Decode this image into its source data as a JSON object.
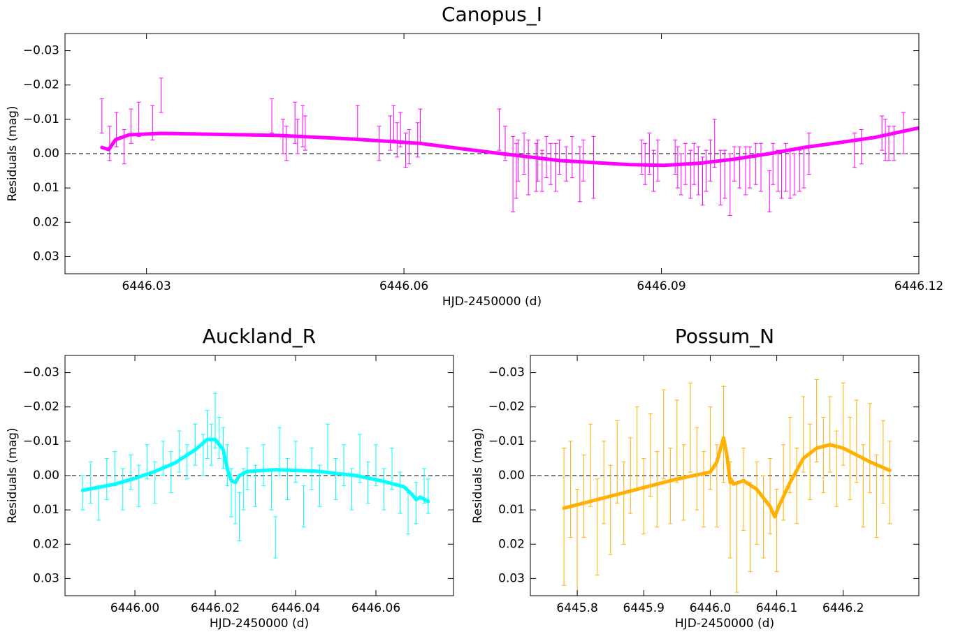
{
  "chart_data": [
    {
      "type": "errorbar",
      "title": "Canopus_I",
      "x_label": "HJD-2450000 (d)",
      "y_label": "Residuals (mag)",
      "xlim": [
        6446.0205,
        6446.12
      ],
      "ylim": [
        0.035,
        -0.035
      ],
      "xticks": [
        6446.03,
        6446.06,
        6446.09,
        6446.12
      ],
      "yticks": [
        {
          "value": -0.03,
          "label": "−0.03"
        },
        {
          "value": -0.02,
          "label": "−0.02"
        },
        {
          "value": -0.01,
          "label": "−0.01"
        },
        {
          "value": 0,
          "label": "0.00"
        },
        0.01,
        0.02,
        0.03
      ],
      "reference_line": 0,
      "series": [
        {
          "type": "errorbar",
          "color": "#ff00ff",
          "x": [
            6446.0248,
            6446.0257,
            6446.0265,
            6446.0274,
            6446.0282,
            6446.0291,
            6446.0307,
            6446.0317,
            6446.0446,
            6446.0459,
            6446.0463,
            6446.0473,
            6446.0476,
            6446.0482,
            6446.0485,
            6446.0546,
            6446.0571,
            6446.0584,
            6446.0588,
            6446.0592,
            6446.0596,
            6446.0602,
            6446.0606,
            6446.0616,
            6446.0619,
            6446.0711,
            6446.0718,
            6446.0727,
            6446.0731,
            6446.0733,
            6446.074,
            6446.0745,
            6446.0754,
            6446.0756,
            6446.0761,
            6446.0766,
            6446.0771,
            6446.0777,
            6446.0781,
            6446.0789,
            6446.0796,
            6446.0805,
            6446.0809,
            6446.0821,
            6446.0877,
            6446.0881,
            6446.0886,
            6446.0891,
            6446.0896,
            6446.0916,
            6446.0919,
            6446.0923,
            6446.0928,
            6446.0934,
            6446.0938,
            6446.0943,
            6446.0948,
            6446.0952,
            6446.0957,
            6446.0962,
            6446.0969,
            6446.0974,
            6446.098,
            6446.0985,
            6446.0991,
            6446.0998,
            6446.1003,
            6446.101,
            6446.1016,
            6446.1026,
            6446.103,
            6446.1036,
            6446.104,
            6446.1045,
            6446.105,
            6446.1055,
            6446.1061,
            6446.1066,
            6446.1072,
            6446.1125,
            6446.1133,
            6446.1157,
            6446.1161,
            6446.1165,
            6446.1171,
            6446.1182
          ],
          "values": [
            -0.011,
            -0.003,
            -0.007,
            -0.002,
            -0.008,
            -0.01,
            -0.009,
            -0.017,
            -0.011,
            -0.005,
            -0.003,
            -0.009,
            -0.005,
            -0.008,
            -0.006,
            -0.009,
            -0.003,
            -0.006,
            -0.009,
            -0.004,
            -0.007,
            -0.001,
            -0.002,
            -0.004,
            -0.008,
            -0.007,
            -0.003,
            0.006,
            0.005,
            0.002,
            0.0,
            0.004,
            0.004,
            0.002,
            0.005,
            0.001,
            0.003,
            0.004,
            0.001,
            0.003,
            0.001,
            0.006,
            0.002,
            0.004,
            0.001,
            0.003,
            0.0,
            0.005,
            0.002,
            0.001,
            0.004,
            0.006,
            0.003,
            0.006,
            0.003,
            0.005,
            0.008,
            0.005,
            0.002,
            -0.003,
            0.007,
            0.006,
            0.009,
            0.003,
            0.004,
            0.005,
            0.004,
            0.003,
            0.004,
            0.011,
            0.003,
            0.005,
            0.006,
            0.004,
            0.006,
            0.006,
            0.005,
            0.004,
            0.0,
            -0.001,
            -0.002,
            -0.006,
            -0.004,
            -0.003,
            -0.003,
            -0.006
          ],
          "errors": [
            0.005,
            0.005,
            0.005,
            0.005,
            0.005,
            0.005,
            0.005,
            0.005,
            0.005,
            0.005,
            0.005,
            0.006,
            0.005,
            0.006,
            0.005,
            0.005,
            0.005,
            0.005,
            0.005,
            0.005,
            0.005,
            0.005,
            0.005,
            0.005,
            0.005,
            0.006,
            0.005,
            0.011,
            0.008,
            0.006,
            0.006,
            0.008,
            0.007,
            0.006,
            0.006,
            0.006,
            0.006,
            0.007,
            0.005,
            0.005,
            0.006,
            0.008,
            0.006,
            0.009,
            0.005,
            0.006,
            0.006,
            0.006,
            0.006,
            0.005,
            0.006,
            0.006,
            0.006,
            0.007,
            0.006,
            0.007,
            0.007,
            0.006,
            0.006,
            0.007,
            0.008,
            0.007,
            0.009,
            0.005,
            0.006,
            0.007,
            0.006,
            0.006,
            0.007,
            0.006,
            0.006,
            0.006,
            0.007,
            0.007,
            0.007,
            0.006,
            0.006,
            0.006,
            0.006,
            0.005,
            0.005,
            0.005,
            0.006,
            0.005,
            0.005,
            0.006
          ]
        },
        {
          "type": "line",
          "color": "#ff00ff",
          "x": [
            6446.0248,
            6446.0256,
            6446.0264,
            6446.028,
            6446.0317,
            6446.0455,
            6446.0537,
            6446.0618,
            6446.07,
            6446.0781,
            6446.0863,
            6446.0903,
            6446.0944,
            6446.0985,
            6446.1026,
            6446.1066,
            6446.1107,
            6446.1148,
            6446.12
          ],
          "values": [
            -0.0018,
            -0.0012,
            -0.0041,
            -0.0055,
            -0.0059,
            -0.0053,
            -0.0043,
            -0.003,
            -0.0004,
            0.002,
            0.0032,
            0.0034,
            0.0028,
            0.0016,
            0.0,
            -0.0018,
            -0.0032,
            -0.0047,
            -0.0075
          ]
        }
      ]
    },
    {
      "type": "errorbar",
      "title": "Auckland_R",
      "x_label": "HJD-2450000 (d)",
      "y_label": "Residuals (mag)",
      "xlim": [
        6445.9826,
        6446.0793
      ],
      "ylim": [
        0.035,
        -0.035
      ],
      "xticks": [
        {
          "value": 6446,
          "label": "6446.00"
        },
        6446.02,
        6446.04,
        6446.06
      ],
      "yticks": [
        {
          "value": -0.03,
          "label": "−0.03"
        },
        {
          "value": -0.02,
          "label": "−0.02"
        },
        {
          "value": -0.01,
          "label": "−0.01"
        },
        {
          "value": 0,
          "label": "0.00"
        },
        0.01,
        0.02,
        0.03
      ],
      "reference_line": 0,
      "series": [
        {
          "type": "errorbar",
          "color": "#00ffff",
          "x": [
            6445.987,
            6445.989,
            6445.991,
            6445.993,
            6445.995,
            6445.997,
            6445.999,
            6446.001,
            6446.003,
            6446.005,
            6446.007,
            6446.009,
            6446.011,
            6446.013,
            6446.015,
            6446.017,
            6446.018,
            6446.019,
            6446.02,
            6446.021,
            6446.022,
            6446.023,
            6446.024,
            6446.025,
            6446.026,
            6446.027,
            6446.028,
            6446.03,
            6446.032,
            6446.034,
            6446.035,
            6446.036,
            6446.038,
            6446.04,
            6446.042,
            6446.044,
            6446.046,
            6446.048,
            6446.05,
            6446.052,
            6446.054,
            6446.056,
            6446.058,
            6446.06,
            6446.062,
            6446.064,
            6446.066,
            6446.068,
            6446.07,
            6446.072,
            6446.073
          ],
          "values": [
            0.005,
            0.002,
            0.008,
            0.001,
            -0.002,
            0.004,
            -0.001,
            0.003,
            -0.004,
            0.002,
            -0.005,
            -0.001,
            -0.007,
            -0.004,
            -0.009,
            -0.006,
            -0.012,
            -0.009,
            -0.016,
            -0.011,
            -0.008,
            -0.003,
            0.005,
            0.008,
            0.012,
            0.004,
            -0.002,
            0.003,
            -0.003,
            0.004,
            0.018,
            -0.007,
            0.001,
            -0.004,
            0.009,
            -0.002,
            0.003,
            -0.008,
            0.001,
            -0.003,
            0.004,
            -0.005,
            0.002,
            -0.003,
            0.004,
            -0.002,
            0.005,
            0.011,
            0.008,
            0.003,
            0.006
          ],
          "errors": [
            0.005,
            0.006,
            0.005,
            0.006,
            0.005,
            0.006,
            0.005,
            0.006,
            0.005,
            0.006,
            0.005,
            0.006,
            0.006,
            0.005,
            0.006,
            0.006,
            0.007,
            0.006,
            0.008,
            0.006,
            0.006,
            0.006,
            0.007,
            0.006,
            0.007,
            0.006,
            0.006,
            0.006,
            0.006,
            0.006,
            0.006,
            0.007,
            0.006,
            0.006,
            0.006,
            0.006,
            0.006,
            0.007,
            0.006,
            0.006,
            0.006,
            0.007,
            0.006,
            0.006,
            0.006,
            0.006,
            0.006,
            0.006,
            0.006,
            0.005,
            0.005
          ]
        },
        {
          "type": "line",
          "color": "#00ffff",
          "x": [
            6445.987,
            6445.995,
            6446.0,
            6446.005,
            6446.01,
            6446.015,
            6446.018,
            6446.02,
            6446.022,
            6446.023,
            6446.024,
            6446.025,
            6446.026,
            6446.028,
            6446.035,
            6446.045,
            6446.055,
            6446.062,
            6446.067,
            6446.069,
            6446.07,
            6446.071,
            6446.073
          ],
          "values": [
            0.0043,
            0.0025,
            0.0008,
            -0.0012,
            -0.0037,
            -0.0075,
            -0.0105,
            -0.0105,
            -0.0075,
            -0.002,
            0.0015,
            0.002,
            0.0,
            -0.0012,
            -0.0017,
            -0.0013,
            0.0,
            0.0017,
            0.0033,
            0.0055,
            0.007,
            0.0063,
            0.0075
          ]
        }
      ]
    },
    {
      "type": "errorbar",
      "title": "Possum_N",
      "x_label": "HJD-2450000 (d)",
      "y_label": "Residuals (mag)",
      "xlim": [
        6445.7295,
        6446.3137
      ],
      "ylim": [
        0.035,
        -0.035
      ],
      "xticks": [
        6445.8,
        6445.9,
        {
          "value": 6446,
          "label": "6446.0"
        },
        6446.1,
        6446.2
      ],
      "yticks": [
        {
          "value": -0.03,
          "label": "−0.03"
        },
        {
          "value": -0.02,
          "label": "−0.02"
        },
        {
          "value": -0.01,
          "label": "−0.01"
        },
        {
          "value": 0,
          "label": "0.00"
        },
        0.01,
        0.02,
        0.03
      ],
      "reference_line": 0,
      "series": [
        {
          "type": "errorbar",
          "color": "#ffb000",
          "x": [
            6445.78,
            6445.79,
            6445.8,
            6445.81,
            6445.82,
            6445.83,
            6445.84,
            6445.85,
            6445.86,
            6445.87,
            6445.88,
            6445.89,
            6445.9,
            6445.91,
            6445.92,
            6445.93,
            6445.94,
            6445.95,
            6445.96,
            6445.97,
            6445.98,
            6445.99,
            6446.0,
            6446.01,
            6446.02,
            6446.03,
            6446.04,
            6446.05,
            6446.06,
            6446.07,
            6446.08,
            6446.09,
            6446.1,
            6446.11,
            6446.12,
            6446.13,
            6446.14,
            6446.15,
            6446.16,
            6446.17,
            6446.18,
            6446.19,
            6446.2,
            6446.21,
            6446.22,
            6446.23,
            6446.24,
            6446.25,
            6446.26,
            6446.27
          ],
          "values": [
            0.012,
            0.004,
            0.02,
            0.006,
            -0.003,
            0.015,
            0.002,
            0.01,
            -0.004,
            0.008,
            0.0,
            -0.008,
            0.006,
            -0.006,
            0.004,
            -0.012,
            0.003,
            -0.01,
            0.002,
            -0.014,
            -0.002,
            0.004,
            -0.008,
            0.003,
            -0.012,
            0.01,
            0.018,
            0.004,
            0.015,
            0.008,
            0.012,
            0.006,
            0.016,
            0.002,
            -0.006,
            0.003,
            -0.012,
            -0.004,
            -0.016,
            -0.006,
            -0.012,
            -0.002,
            -0.015,
            -0.005,
            -0.01,
            0.003,
            -0.008,
            0.006,
            -0.004,
            0.002
          ],
          "errors": [
            0.02,
            0.014,
            0.016,
            0.012,
            0.012,
            0.014,
            0.012,
            0.013,
            0.012,
            0.012,
            0.011,
            0.012,
            0.011,
            0.012,
            0.011,
            0.013,
            0.011,
            0.012,
            0.011,
            0.013,
            0.012,
            0.011,
            0.012,
            0.012,
            0.014,
            0.014,
            0.016,
            0.012,
            0.013,
            0.012,
            0.012,
            0.011,
            0.012,
            0.011,
            0.011,
            0.011,
            0.011,
            0.011,
            0.012,
            0.011,
            0.011,
            0.011,
            0.012,
            0.012,
            0.012,
            0.012,
            0.013,
            0.012,
            0.012,
            0.012
          ]
        },
        {
          "type": "line",
          "color": "#ffb000",
          "x": [
            6445.78,
            6445.85,
            6445.9,
            6445.95,
            6446.0,
            6446.01,
            6446.02,
            6446.025,
            6446.03,
            6446.031,
            6446.035,
            6446.05,
            6446.07,
            6446.09,
            6446.097,
            6446.103,
            6446.12,
            6446.14,
            6446.16,
            6446.18,
            6446.2,
            6446.24,
            6446.27
          ],
          "values": [
            0.0095,
            0.006,
            0.0035,
            0.001,
            -0.001,
            -0.004,
            -0.011,
            -0.006,
            0.002,
            0.001,
            0.0025,
            0.0015,
            0.004,
            0.009,
            0.012,
            0.009,
            0.002,
            -0.005,
            -0.008,
            -0.009,
            -0.008,
            -0.004,
            -0.0015
          ]
        }
      ]
    }
  ]
}
